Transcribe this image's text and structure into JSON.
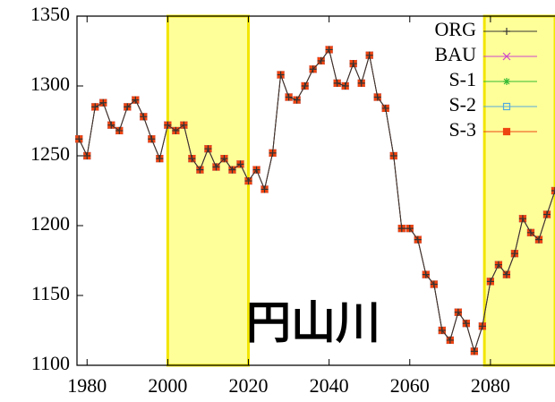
{
  "chart_data": {
    "type": "line",
    "annotation": "円山川",
    "xlim": [
      1977.5,
      2096
    ],
    "ylim": [
      1100,
      1350
    ],
    "xticks": [
      1980,
      2000,
      2020,
      2040,
      2060,
      2080
    ],
    "yticks": [
      1100,
      1150,
      1200,
      1250,
      1300,
      1350
    ],
    "highlight_ranges": [
      [
        2000,
        2020
      ],
      [
        2078.5,
        2096
      ]
    ],
    "highlight_color": "#ffff99",
    "highlight_border": "#f2e600",
    "legend": "upper right",
    "x": [
      1978,
      1980,
      1982,
      1984,
      1986,
      1988,
      1990,
      1992,
      1994,
      1996,
      1998,
      2000,
      2002,
      2004,
      2006,
      2008,
      2010,
      2012,
      2014,
      2016,
      2018,
      2020,
      2022,
      2024,
      2026,
      2028,
      2030,
      2032,
      2034,
      2036,
      2038,
      2040,
      2042,
      2044,
      2046,
      2048,
      2050,
      2052,
      2054,
      2056,
      2058,
      2060,
      2062,
      2064,
      2066,
      2068,
      2070,
      2072,
      2074,
      2076,
      2078,
      2080,
      2082,
      2084,
      2086,
      2088,
      2090,
      2092,
      2094,
      2096
    ],
    "series": [
      {
        "name": "BAU",
        "color": "#cc44cc",
        "marker": "x",
        "values": [
          1262,
          1250,
          1285,
          1288,
          1272,
          1268,
          1285,
          1290,
          1278,
          1262,
          1248,
          1272,
          1268,
          1272,
          1248,
          1240,
          1255,
          1242,
          1248,
          1240,
          1244,
          1232,
          1240,
          1226,
          1252,
          1308,
          1292,
          1290,
          1300,
          1312,
          1318,
          1326,
          1302,
          1300,
          1316,
          1302,
          1322,
          1292,
          1284,
          1250,
          1198,
          1198,
          1190,
          1165,
          1158,
          1125,
          1118,
          1138,
          1130,
          1110,
          1128,
          1160,
          1172,
          1165,
          1180,
          1205,
          1195,
          1190,
          1208,
          1225
        ]
      },
      {
        "name": "S-1",
        "color": "#33bb33",
        "marker": "star",
        "values": [
          1262,
          1250,
          1285,
          1288,
          1272,
          1268,
          1285,
          1290,
          1278,
          1262,
          1248,
          1272,
          1268,
          1272,
          1248,
          1240,
          1255,
          1242,
          1248,
          1240,
          1244,
          1232,
          1240,
          1226,
          1252,
          1308,
          1292,
          1290,
          1300,
          1312,
          1318,
          1326,
          1302,
          1300,
          1316,
          1302,
          1322,
          1292,
          1284,
          1250,
          1198,
          1198,
          1190,
          1165,
          1158,
          1125,
          1118,
          1138,
          1130,
          1110,
          1128,
          1160,
          1172,
          1165,
          1180,
          1205,
          1195,
          1190,
          1208,
          1225
        ]
      },
      {
        "name": "S-2",
        "color": "#55aadd",
        "marker": "open-square",
        "values": [
          1262,
          1250,
          1285,
          1288,
          1272,
          1268,
          1285,
          1290,
          1278,
          1262,
          1248,
          1272,
          1268,
          1272,
          1248,
          1240,
          1255,
          1242,
          1248,
          1240,
          1244,
          1232,
          1240,
          1226,
          1252,
          1308,
          1292,
          1290,
          1300,
          1312,
          1318,
          1326,
          1302,
          1300,
          1316,
          1302,
          1322,
          1292,
          1284,
          1250,
          1198,
          1198,
          1190,
          1165,
          1158,
          1125,
          1118,
          1138,
          1130,
          1110,
          1128,
          1160,
          1172,
          1165,
          1180,
          1205,
          1195,
          1190,
          1208,
          1225
        ]
      },
      {
        "name": "S-3",
        "color": "#ee4411",
        "marker": "square",
        "values": [
          1262,
          1250,
          1285,
          1288,
          1272,
          1268,
          1285,
          1290,
          1278,
          1262,
          1248,
          1272,
          1268,
          1272,
          1248,
          1240,
          1255,
          1242,
          1248,
          1240,
          1244,
          1232,
          1240,
          1226,
          1252,
          1308,
          1292,
          1290,
          1300,
          1312,
          1318,
          1326,
          1302,
          1300,
          1316,
          1302,
          1322,
          1292,
          1284,
          1250,
          1198,
          1198,
          1190,
          1165,
          1158,
          1125,
          1118,
          1138,
          1130,
          1110,
          1128,
          1160,
          1172,
          1165,
          1180,
          1205,
          1195,
          1190,
          1208,
          1225
        ]
      },
      {
        "name": "ORG",
        "color": "#333333",
        "marker": "plus",
        "values": [
          1262,
          1250,
          1285,
          1288,
          1272,
          1268,
          1285,
          1290,
          1278,
          1262,
          1248,
          1272,
          1268,
          1272,
          1248,
          1240,
          1255,
          1242,
          1248,
          1240,
          1244,
          1232,
          1240,
          1226,
          1252,
          1308,
          1292,
          1290,
          1300,
          1312,
          1318,
          1326,
          1302,
          1300,
          1316,
          1302,
          1322,
          1292,
          1284,
          1250,
          1198,
          1198,
          1190,
          1165,
          1158,
          1125,
          1118,
          1138,
          1130,
          1110,
          1128,
          1160,
          1172,
          1165,
          1180,
          1205,
          1195,
          1190,
          1208,
          1225
        ]
      }
    ],
    "legend_order": [
      4,
      0,
      1,
      2,
      3
    ]
  }
}
